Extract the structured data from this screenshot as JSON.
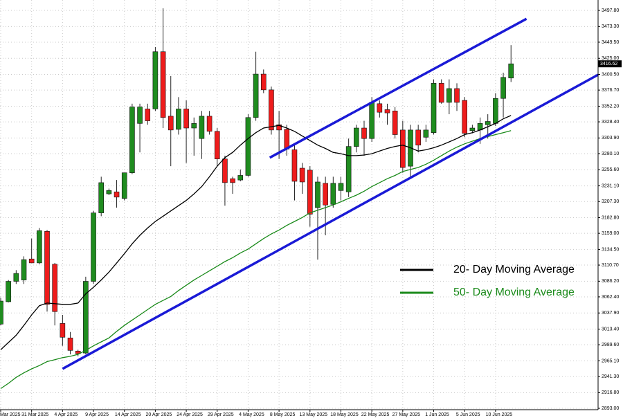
{
  "chart_data": {
    "type": "candlestick",
    "categories": [
      "Mar 2025",
      null,
      null,
      null,
      "31 Mar 2025",
      null,
      null,
      null,
      "4 Apr 2025",
      null,
      null,
      null,
      "9 Apr 2025",
      null,
      null,
      null,
      "14 Apr 2025",
      null,
      null,
      null,
      "20 Apr 2025",
      null,
      null,
      null,
      "24 Apr 2025",
      null,
      null,
      null,
      "29 Apr 2025",
      null,
      null,
      null,
      "4 May 2025",
      null,
      null,
      null,
      "8 May 2025",
      null,
      null,
      null,
      "13 May 2025",
      null,
      null,
      null,
      "18 May 2025",
      null,
      null,
      null,
      "22 May 2025",
      null,
      null,
      null,
      "27 May 2025",
      null,
      null,
      null,
      "1 Jun 2025",
      null,
      null,
      null,
      "5 Jun 2025",
      null,
      null,
      null,
      "10 Jun 2025",
      null,
      null
    ],
    "candles": {
      "up_color": "#1f8c1f",
      "down_color": "#ee1c1c",
      "open": [
        3021,
        3055,
        3086,
        3088,
        3120,
        3114,
        3162,
        3112,
        3022,
        3000,
        2980,
        2977,
        3086,
        3190,
        3219,
        3222,
        3212,
        3251,
        3326,
        3348,
        3348,
        3435,
        3337,
        3317,
        3348,
        3319,
        3303,
        3337,
        3314,
        3272,
        3242,
        3240,
        3247,
        3335,
        3401,
        3377,
        3324,
        3317,
        3286,
        3258,
        3255,
        3198,
        3235,
        3203,
        3224,
        3222,
        3291,
        3319,
        3303,
        3356,
        3347,
        3345,
        3316,
        3261,
        3316,
        3305,
        3312,
        3387,
        3358,
        3379,
        3361,
        3315,
        3316,
        3324,
        3326,
        3364,
        3395
      ],
      "high": [
        3061,
        3088,
        3103,
        3124,
        3151,
        3167,
        3164,
        3114,
        3035,
        3009,
        2982,
        3093,
        3193,
        3245,
        3227,
        3240,
        3251,
        3356,
        3356,
        3356,
        3442,
        3501,
        3398,
        3366,
        3361,
        3335,
        3345,
        3345,
        3319,
        3277,
        3245,
        3256,
        3340,
        3435,
        3408,
        3382,
        3345,
        3324,
        3293,
        3266,
        3261,
        3245,
        3245,
        3245,
        3245,
        3303,
        3324,
        3330,
        3366,
        3361,
        3356,
        3351,
        3330,
        3324,
        3324,
        3324,
        3393,
        3393,
        3393,
        3387,
        3366,
        3324,
        3335,
        3340,
        3372,
        3403,
        3445
      ],
      "low": [
        3019,
        3054,
        3082,
        3082,
        3114,
        3112,
        3040,
        3019,
        2988,
        2975,
        2972,
        2975,
        3082,
        3185,
        3217,
        3198,
        3209,
        3249,
        3282,
        3324,
        3345,
        3319,
        3261,
        3309,
        3266,
        3277,
        3272,
        3309,
        3261,
        3201,
        3219,
        3238,
        3245,
        3330,
        3372,
        3309,
        3272,
        3277,
        3209,
        3219,
        3169,
        3119,
        3156,
        3198,
        3209,
        3214,
        3282,
        3277,
        3298,
        3335,
        3324,
        3303,
        3251,
        3245,
        3282,
        3298,
        3309,
        3356,
        3340,
        3345,
        3305,
        3311,
        3295,
        3303,
        3322,
        3335,
        3389
      ],
      "close": [
        3056,
        3086,
        3098,
        3119,
        3114,
        3163,
        3051,
        3040,
        3001,
        2981,
        2976,
        3086,
        3190,
        3236,
        3224,
        3214,
        3251,
        3351,
        3351,
        3330,
        3435,
        3335,
        3316,
        3348,
        3319,
        3326,
        3337,
        3314,
        3272,
        3236,
        3236,
        3247,
        3335,
        3401,
        3377,
        3316,
        3316,
        3287,
        3238,
        3237,
        3188,
        3237,
        3202,
        3235,
        3235,
        3291,
        3319,
        3303,
        3358,
        3343,
        3342,
        3309,
        3259,
        3316,
        3293,
        3316,
        3387,
        3358,
        3379,
        3358,
        3311,
        3319,
        3326,
        3329,
        3364,
        3396,
        3416.62
      ]
    },
    "series": [
      {
        "name": "20- Day Moving Average",
        "color": "#000000",
        "values": [
          2982,
          2993,
          3004,
          3019,
          3035,
          3049,
          3053,
          3052,
          3051,
          3051,
          3053,
          3067,
          3077,
          3088,
          3100,
          3114,
          3128,
          3143,
          3156,
          3167,
          3177,
          3185,
          3193,
          3201,
          3209,
          3219,
          3230,
          3245,
          3261,
          3274,
          3282,
          3293,
          3303,
          3312,
          3319,
          3321,
          3323,
          3319,
          3314,
          3307,
          3300,
          3293,
          3288,
          3282,
          3280,
          3277,
          3277,
          3278,
          3280,
          3284,
          3288,
          3291,
          3293,
          3289,
          3284,
          3286,
          3289,
          3293,
          3298,
          3303,
          3309,
          3312,
          3316,
          3321,
          3326,
          3333,
          3338
        ]
      },
      {
        "name": "50- Day Moving Average",
        "color": "#1a8a1a",
        "values": [
          2923,
          2931,
          2940,
          2947,
          2953,
          2958,
          2964,
          2967,
          2970,
          2972,
          2975,
          2981,
          2988,
          2994,
          3000,
          3010,
          3019,
          3027,
          3035,
          3043,
          3051,
          3057,
          3063,
          3072,
          3080,
          3088,
          3095,
          3102,
          3109,
          3116,
          3122,
          3129,
          3135,
          3143,
          3151,
          3158,
          3164,
          3171,
          3177,
          3183,
          3190,
          3194,
          3198,
          3202,
          3207,
          3212,
          3217,
          3223,
          3230,
          3236,
          3242,
          3247,
          3253,
          3256,
          3259,
          3264,
          3270,
          3277,
          3284,
          3290,
          3295,
          3299,
          3303,
          3306,
          3309,
          3312,
          3315
        ]
      }
    ],
    "trendlines": [
      {
        "color": "#1a1ad6",
        "x": [
          34.8,
          68
        ],
        "y": [
          3274,
          3485
        ]
      },
      {
        "color": "#1a1ad6",
        "x": [
          8,
          77.4
        ],
        "y": [
          2953,
          3400
        ]
      }
    ],
    "ylim": [
      2890.9,
      3513.6
    ],
    "yticks": [
      {
        "value": 3497.8,
        "label": "3497.80"
      },
      {
        "value": 3473.3,
        "label": "3473.30"
      },
      {
        "value": 3449.5,
        "label": "3449.50"
      },
      {
        "value": 3425,
        "label": "3425.00"
      },
      {
        "value": 3400.5,
        "label": "3400.50"
      },
      {
        "value": 3376.7,
        "label": "3376.70"
      },
      {
        "value": 3352.2,
        "label": "3352.20"
      },
      {
        "value": 3328.4,
        "label": "3328.40"
      },
      {
        "value": 3303.9,
        "label": "3303.90"
      },
      {
        "value": 3280.1,
        "label": "3280.10"
      },
      {
        "value": 3255.6,
        "label": "3255.60"
      },
      {
        "value": 3231.1,
        "label": "3231.10"
      },
      {
        "value": 3207.3,
        "label": "3207.30"
      },
      {
        "value": 3182.8,
        "label": "3182.80"
      },
      {
        "value": 3159,
        "label": "3159.00"
      },
      {
        "value": 3134.5,
        "label": "3134.50"
      },
      {
        "value": 3110.7,
        "label": "3110.70"
      },
      {
        "value": 3086.2,
        "label": "3086.20"
      },
      {
        "value": 3062.4,
        "label": "3062.40"
      },
      {
        "value": 3037.9,
        "label": "3037.90"
      },
      {
        "value": 3013.4,
        "label": "3013.40"
      },
      {
        "value": 2989.6,
        "label": "2989.60"
      },
      {
        "value": 2965.1,
        "label": "2965.10"
      },
      {
        "value": 2941.3,
        "label": "2941.30"
      },
      {
        "value": 2916.8,
        "label": "2916.80"
      },
      {
        "value": 2893,
        "label": "2893.00"
      }
    ],
    "grid": true
  }
}
